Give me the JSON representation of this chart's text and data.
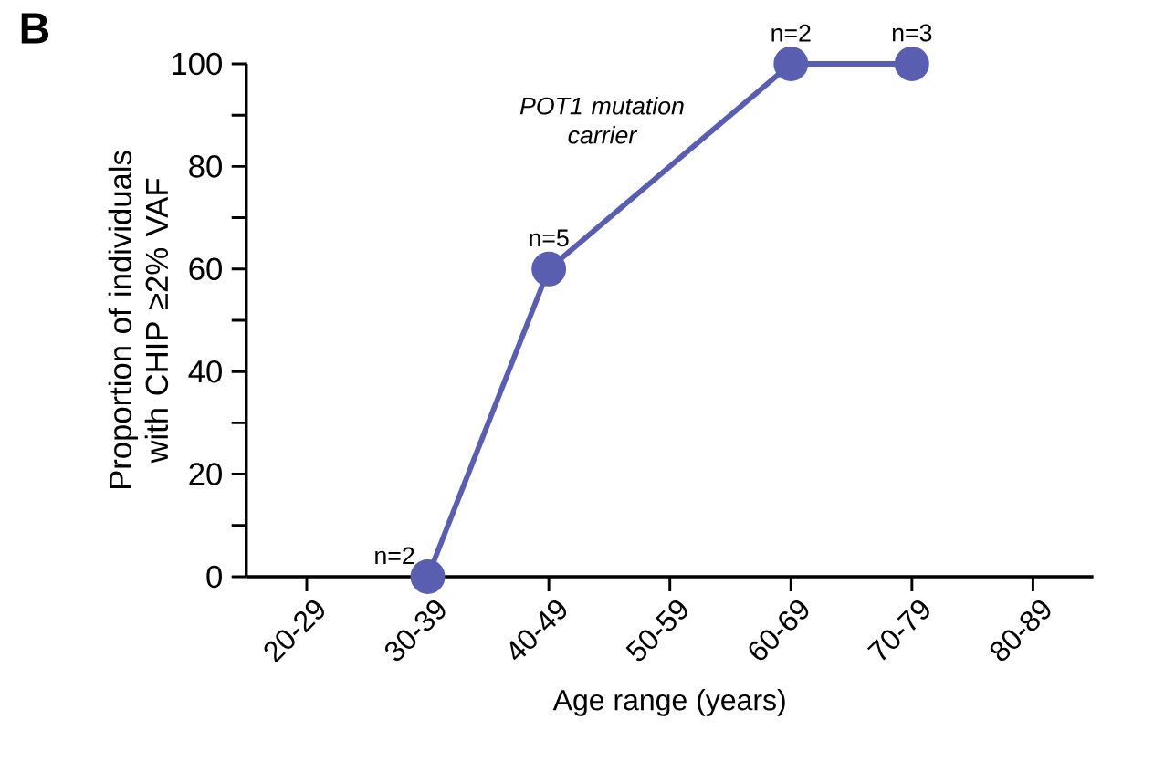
{
  "chart_data": {
    "type": "line",
    "title": "B",
    "xlabel": "Age range (years)",
    "ylabel": "Proportion of individuals with CHIP ≥2% VAF",
    "categories": [
      "20-29",
      "30-39",
      "40-49",
      "50-59",
      "60-69",
      "70-79",
      "80-89"
    ],
    "series": [
      {
        "color": "#5a5eb0",
        "values": [
          null,
          0,
          60,
          null,
          100,
          100,
          null
        ]
      }
    ],
    "ylim": [
      0,
      100
    ],
    "yticks": [
      0,
      {
        "value": 10,
        "label": null
      },
      20,
      {
        "value": 30,
        "label": null
      },
      40,
      {
        "value": 50,
        "label": null
      },
      60,
      {
        "value": 70,
        "label": null
      },
      80,
      {
        "value": 90,
        "label": null
      },
      100
    ],
    "annotations": [
      "POT1 mutation carrier",
      {
        "text": "n=2",
        "x": "30-39",
        "y": 0
      },
      {
        "text": "n=5",
        "x": "40-49",
        "y": 60
      },
      {
        "text": "n=2",
        "x": "60-69",
        "y": 100
      },
      {
        "text": "n=3",
        "x": "70-79",
        "y": 100
      }
    ],
    "marker": "circle",
    "line_style": "solid",
    "grid": false
  }
}
